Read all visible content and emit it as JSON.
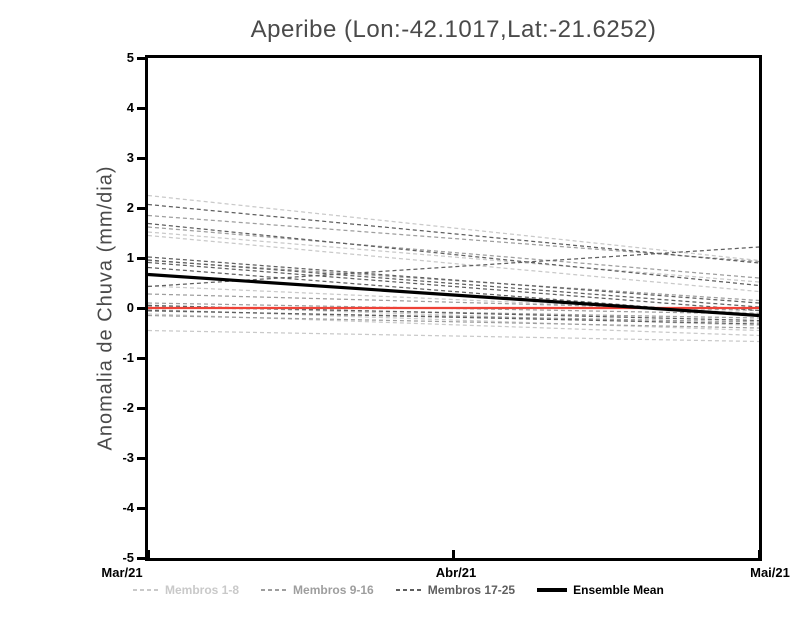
{
  "chart": {
    "title": "Aperibe (Lon:-42.1017,Lat:-21.6252)",
    "ylabel": "Anomalia de Chuva (mm/dia)"
  },
  "chart_data": {
    "type": "line",
    "title": "Aperibe (Lon:-42.1017,Lat:-21.6252)",
    "xlabel": "",
    "ylabel": "Anomalia de Chuva (mm/dia)",
    "x_categories": [
      "Mar/21",
      "Abr/21",
      "Mai/21"
    ],
    "ylim": [
      -5,
      5
    ],
    "y_ticks": [
      5,
      4,
      3,
      2,
      1,
      0,
      -1,
      -2,
      -3,
      -4,
      -5
    ],
    "grid": false,
    "legend_position": "bottom",
    "units": "mm/dia",
    "member_groups": [
      {
        "label": "Membros 1-8",
        "color": "#c9c9c9",
        "line_style": "dashed",
        "members": [
          [
            2.25,
            0.95
          ],
          [
            1.52,
            0.52
          ],
          [
            1.45,
            0.33
          ],
          [
            0.44,
            -0.1
          ],
          [
            0.06,
            -0.35
          ],
          [
            -0.03,
            -0.45
          ],
          [
            -0.12,
            -0.55
          ],
          [
            -0.45,
            -0.67
          ]
        ]
      },
      {
        "label": "Membros 9-16",
        "color": "#9e9e9e",
        "line_style": "dashed",
        "members": [
          [
            1.85,
            0.93
          ],
          [
            1.62,
            0.6
          ],
          [
            0.95,
            0.15
          ],
          [
            0.28,
            -0.05
          ],
          [
            0.1,
            -0.12
          ],
          [
            0.02,
            -0.2
          ],
          [
            -0.06,
            -0.28
          ],
          [
            -0.15,
            -0.4
          ]
        ]
      },
      {
        "label": "Membros 17-25",
        "color": "#5f5f5f",
        "line_style": "dashed",
        "members": [
          [
            2.07,
            0.9
          ],
          [
            1.69,
            0.45
          ],
          [
            1.02,
            0.1
          ],
          [
            0.96,
            0.02
          ],
          [
            0.91,
            -0.05
          ],
          [
            0.81,
            -0.15
          ],
          [
            0.43,
            1.22
          ],
          [
            0.05,
            -0.25
          ],
          [
            -0.05,
            -0.32
          ]
        ]
      }
    ],
    "reference_line": {
      "name": "zero-anomaly",
      "color": "#ee4237",
      "values": [
        0.0,
        0.0
      ]
    },
    "ensemble_mean": {
      "label": "Ensemble Mean",
      "color": "#000000",
      "line_style": "solid",
      "values": [
        0.67,
        -0.15
      ]
    }
  }
}
